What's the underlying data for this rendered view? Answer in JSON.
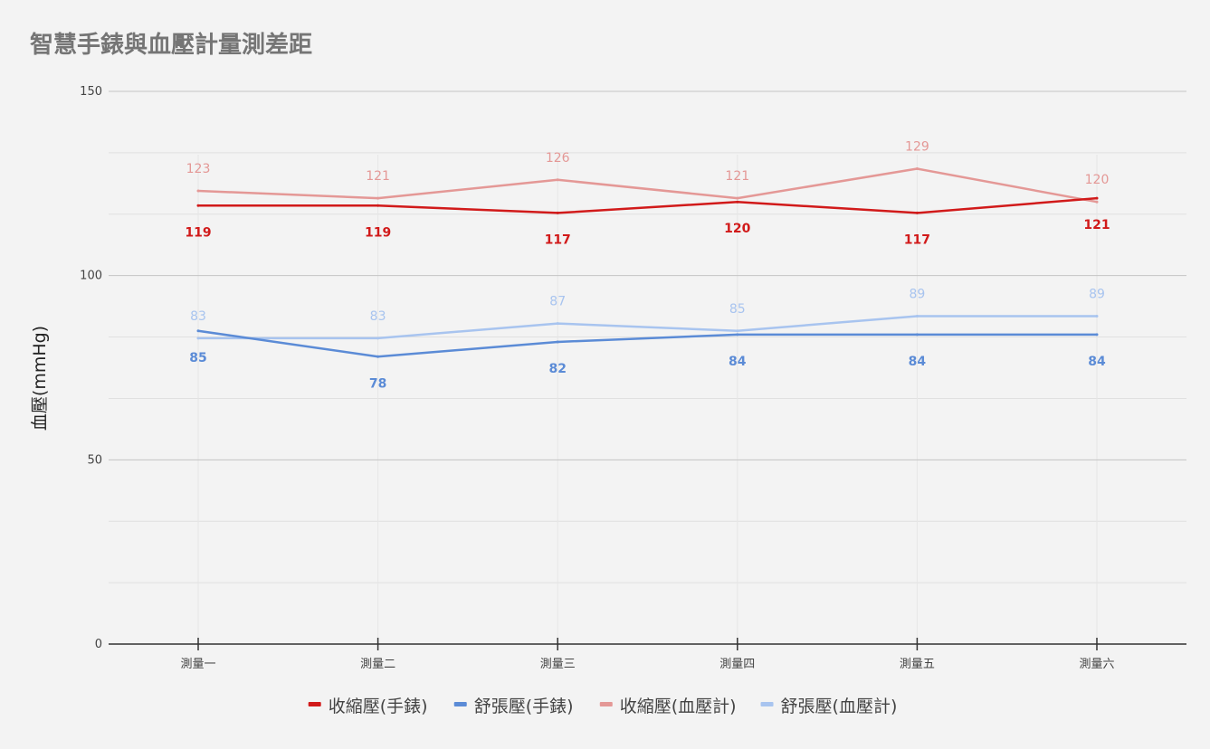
{
  "chart_data": {
    "type": "line",
    "title": "智慧手錶與血壓計量測差距",
    "ylabel": "血壓(mmHg)",
    "xlabel": "",
    "ylim": [
      0,
      150
    ],
    "yticks": [
      0,
      50,
      100,
      150
    ],
    "grid": true,
    "legend_position": "bottom",
    "categories": [
      "測量一",
      "測量二",
      "測量三",
      "測量四",
      "測量五",
      "測量六"
    ],
    "series": [
      {
        "name": "收縮壓(手錶)",
        "color": "#d11a1a",
        "values": [
          119,
          119,
          117,
          120,
          117,
          121
        ],
        "label_position": "below"
      },
      {
        "name": "舒張壓(手錶)",
        "color": "#5b8bd6",
        "values": [
          85,
          78,
          82,
          84,
          84,
          84
        ],
        "label_position": "below"
      },
      {
        "name": "收縮壓(血壓計)",
        "color": "#e49896",
        "values": [
          123,
          121,
          126,
          121,
          129,
          120
        ],
        "label_position": "above"
      },
      {
        "name": "舒張壓(血壓計)",
        "color": "#a8c4ef",
        "values": [
          83,
          83,
          87,
          85,
          89,
          89
        ],
        "label_position": "above"
      }
    ]
  }
}
